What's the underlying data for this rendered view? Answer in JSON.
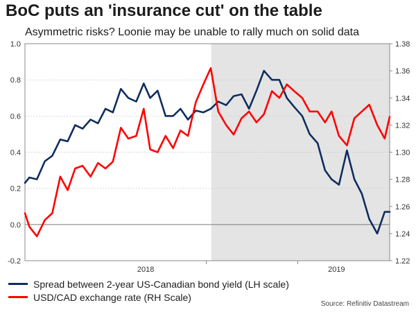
{
  "title": "BoC puts an 'insurance cut' on the table",
  "subtitle": "Asymmetric risks? Loonie may be unable to rally much on solid data",
  "source": "Source: Refinitiv Datastream",
  "colors": {
    "spread": "#0f2d5e",
    "usdcad": "#ff0000",
    "shade": "#e4e4e4"
  },
  "chart_data": {
    "type": "line",
    "title": "BoC puts an 'insurance cut' on the table",
    "subtitle": "Asymmetric risks? Loonie may be unable to rally much on solid data",
    "x_range": [
      "2017-07-01",
      "2019-07-05"
    ],
    "x_tick_labels": [
      "2018",
      "2019"
    ],
    "shaded_region": {
      "from": "2018-07-11",
      "to": "2019-07-05"
    },
    "left_axis": {
      "ylim": [
        -0.2,
        1.0
      ],
      "ticks": [
        "-0.2",
        "0.0",
        "0.2",
        "0.4",
        "0.6",
        "0.8",
        "1.0"
      ]
    },
    "right_axis": {
      "ylim": [
        1.22,
        1.38
      ],
      "ticks": [
        "1.22",
        "1.24",
        "1.26",
        "1.28",
        "1.30",
        "1.32",
        "1.34",
        "1.36",
        "1.38"
      ]
    },
    "legend_position": "bottom-left",
    "series": [
      {
        "name": "Spread between 2-year US-Canadian bond yield (LH scale)",
        "axis": "left",
        "color": "#0f2d5e",
        "x": [
          "2017-07-01",
          "2017-07-10",
          "2017-07-25",
          "2017-08-10",
          "2017-08-25",
          "2017-09-10",
          "2017-09-25",
          "2017-10-10",
          "2017-10-25",
          "2017-11-10",
          "2017-11-25",
          "2017-12-10",
          "2017-12-25",
          "2018-01-10",
          "2018-01-25",
          "2018-02-10",
          "2018-02-25",
          "2018-03-10",
          "2018-03-25",
          "2018-04-10",
          "2018-04-25",
          "2018-05-10",
          "2018-05-25",
          "2018-06-10",
          "2018-06-25",
          "2018-07-10",
          "2018-07-25",
          "2018-08-10",
          "2018-08-25",
          "2018-09-10",
          "2018-09-25",
          "2018-10-10",
          "2018-10-25",
          "2018-11-10",
          "2018-11-25",
          "2018-12-10",
          "2018-12-25",
          "2019-01-10",
          "2019-01-25",
          "2019-02-10",
          "2019-02-25",
          "2019-03-10",
          "2019-03-25",
          "2019-04-10",
          "2019-04-25",
          "2019-05-10",
          "2019-05-25",
          "2019-06-10",
          "2019-06-25",
          "2019-07-05"
        ],
        "values": [
          0.23,
          0.26,
          0.25,
          0.35,
          0.38,
          0.47,
          0.46,
          0.55,
          0.53,
          0.58,
          0.56,
          0.64,
          0.62,
          0.75,
          0.7,
          0.68,
          0.78,
          0.7,
          0.74,
          0.6,
          0.6,
          0.64,
          0.58,
          0.63,
          0.62,
          0.64,
          0.68,
          0.66,
          0.71,
          0.72,
          0.64,
          0.74,
          0.85,
          0.8,
          0.8,
          0.7,
          0.65,
          0.6,
          0.5,
          0.45,
          0.3,
          0.25,
          0.22,
          0.41,
          0.25,
          0.17,
          0.03,
          -0.05,
          0.07,
          0.07
        ]
      },
      {
        "name": "USD/CAD exchange rate (RH Scale)",
        "axis": "right",
        "color": "#ff0000",
        "x": [
          "2017-07-01",
          "2017-07-10",
          "2017-07-25",
          "2017-08-10",
          "2017-08-25",
          "2017-09-10",
          "2017-09-25",
          "2017-10-10",
          "2017-10-25",
          "2017-11-10",
          "2017-11-25",
          "2017-12-10",
          "2017-12-25",
          "2018-01-10",
          "2018-01-25",
          "2018-02-10",
          "2018-02-25",
          "2018-03-10",
          "2018-03-25",
          "2018-04-10",
          "2018-04-25",
          "2018-05-10",
          "2018-05-25",
          "2018-06-10",
          "2018-06-25",
          "2018-07-10",
          "2018-07-25",
          "2018-08-10",
          "2018-08-25",
          "2018-09-10",
          "2018-09-25",
          "2018-10-10",
          "2018-10-25",
          "2018-11-10",
          "2018-11-25",
          "2018-12-10",
          "2018-12-25",
          "2019-01-10",
          "2019-01-25",
          "2019-02-10",
          "2019-02-25",
          "2019-03-10",
          "2019-03-25",
          "2019-04-10",
          "2019-04-25",
          "2019-05-10",
          "2019-05-25",
          "2019-06-10",
          "2019-06-25",
          "2019-07-05"
        ],
        "values": [
          1.255,
          1.245,
          1.238,
          1.25,
          1.255,
          1.282,
          1.272,
          1.288,
          1.29,
          1.282,
          1.292,
          1.288,
          1.293,
          1.318,
          1.31,
          1.312,
          1.332,
          1.302,
          1.3,
          1.312,
          1.303,
          1.316,
          1.312,
          1.337,
          1.35,
          1.362,
          1.33,
          1.32,
          1.313,
          1.325,
          1.33,
          1.322,
          1.328,
          1.345,
          1.34,
          1.35,
          1.345,
          1.34,
          1.33,
          1.33,
          1.322,
          1.33,
          1.312,
          1.305,
          1.325,
          1.33,
          1.335,
          1.32,
          1.31,
          1.326
        ]
      }
    ]
  },
  "legend": {
    "items": [
      {
        "label": "Spread between 2-year US-Canadian bond yield (LH scale)",
        "color": "#0f2d5e"
      },
      {
        "label": "USD/CAD exchange rate (RH Scale)",
        "color": "#ff0000"
      }
    ]
  }
}
